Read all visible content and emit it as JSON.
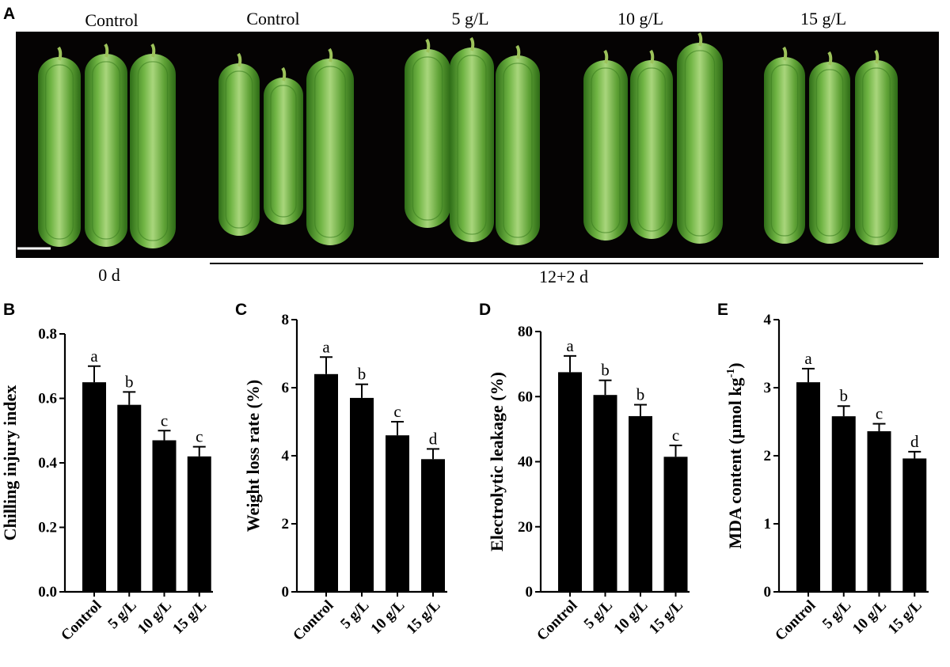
{
  "photo_panel": {
    "letter": "A",
    "group_labels": [
      "Control",
      "Control",
      "5 g/L",
      "10 g/L",
      "15 g/L"
    ],
    "time_labels": [
      "0 d",
      "12+2 d"
    ]
  },
  "colors": {
    "bar": "#000000",
    "photo_background": "#050303",
    "cucumber_base": "#4f9a2e",
    "cucumber_highlight": "#b7dc8c"
  },
  "chart_data": [
    {
      "panel": "B",
      "type": "bar",
      "ylabel": "Chilling injury index",
      "categories": [
        "Control",
        "5 g/L",
        "10 g/L",
        "15 g/L"
      ],
      "values": [
        0.65,
        0.58,
        0.47,
        0.42
      ],
      "errors": [
        0.05,
        0.04,
        0.03,
        0.03
      ],
      "significance": [
        "a",
        "b",
        "c",
        "c"
      ],
      "ylim": [
        0,
        0.8
      ],
      "yticks": [
        "0.0",
        "0.2",
        "0.4",
        "0.6",
        "0.8"
      ]
    },
    {
      "panel": "C",
      "type": "bar",
      "ylabel": "Weight loss rate (%)",
      "categories": [
        "Control",
        "5 g/L",
        "10 g/L",
        "15 g/L"
      ],
      "values": [
        6.4,
        5.7,
        4.6,
        3.9
      ],
      "errors": [
        0.5,
        0.4,
        0.4,
        0.3
      ],
      "significance": [
        "a",
        "b",
        "c",
        "d"
      ],
      "ylim": [
        0,
        8
      ],
      "yticks": [
        "0",
        "2",
        "4",
        "6",
        "8"
      ]
    },
    {
      "panel": "D",
      "type": "bar",
      "ylabel": "Electrolytic leakage (%)",
      "categories": [
        "Control",
        "5 g/L",
        "10 g/L",
        "15 g/L"
      ],
      "values": [
        67.5,
        60.5,
        54,
        41.5
      ],
      "errors": [
        5,
        4.5,
        3.5,
        3.5
      ],
      "significance": [
        "a",
        "b",
        "b",
        "c"
      ],
      "ylim": [
        0,
        80
      ],
      "yticks": [
        "0",
        "20",
        "40",
        "60",
        "80"
      ]
    },
    {
      "panel": "E",
      "type": "bar",
      "ylabel": "MDA content (µmol kg",
      "ylabel_superscript": "-1",
      "ylabel_close": ")",
      "categories": [
        "Control",
        "5 g/L",
        "10 g/L",
        "15 g/L"
      ],
      "values": [
        3.08,
        2.58,
        2.36,
        1.96
      ],
      "errors": [
        0.2,
        0.15,
        0.11,
        0.1
      ],
      "significance": [
        "a",
        "b",
        "c",
        "d"
      ],
      "ylim": [
        0,
        4
      ],
      "yticks": [
        "0",
        "1",
        "2",
        "3",
        "4"
      ]
    }
  ]
}
